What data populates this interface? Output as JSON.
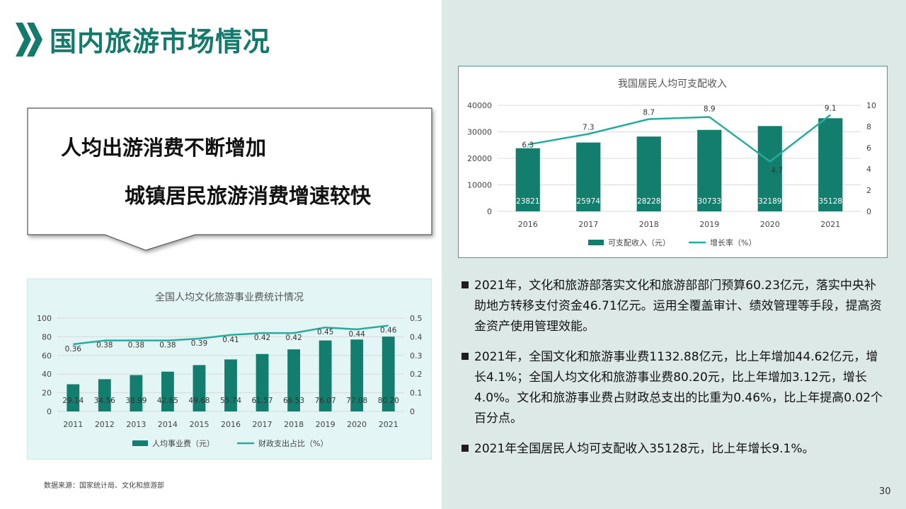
{
  "page": {
    "title": "国内旅游市场情况",
    "callout_line1": "人均出游消费不断增加",
    "callout_line2": "城镇居民旅游消费增速较快",
    "source": "数据来源：国家统计局、文化和旅游部",
    "page_number": "30",
    "accent_color": "#147a6b",
    "bar_color": "#137d6e",
    "line_color": "#27ab9c",
    "right_panel_color": "#dde9e6",
    "icon": "double-chevron-icon"
  },
  "bullets": [
    "2021年，文化和旅游部落实文化和旅游部部门预算60.23亿元，落实中央补助地方转移支付资金46.71亿元。运用全覆盖审计、绩效管理等手段，提高资金资产使用管理效能。",
    "2021年，全国文化和旅游事业费1132.88亿元，比上年增加44.62亿元，增长4.1%；全国人均文化和旅游事业费80.20元，比上年增加3.12元，增长4.0%。文化和旅游事业费占财政总支出的比重为0.46%，比上年提高0.02个百分点。",
    "2021年全国居民人均可支配收入35128元，比上年增长9.1%。"
  ],
  "chart_data": [
    {
      "type": "bar",
      "title": "全国人均文化旅游事业费统计情况",
      "categories": [
        "2011",
        "2012",
        "2013",
        "2014",
        "2015",
        "2016",
        "2017",
        "2018",
        "2019",
        "2020",
        "2021"
      ],
      "series": [
        {
          "name": "人均事业费（元）",
          "type": "bar",
          "axis": "left",
          "values": [
            29.14,
            34.56,
            38.99,
            42.65,
            49.68,
            55.74,
            61.57,
            66.53,
            76.07,
            77.08,
            80.2
          ]
        },
        {
          "name": "财政支出占比（%）",
          "type": "line",
          "axis": "right",
          "values": [
            0.36,
            0.38,
            0.38,
            0.38,
            0.39,
            0.41,
            0.42,
            0.42,
            0.45,
            0.44,
            0.46
          ]
        }
      ],
      "ylim": [
        0,
        100
      ],
      "yticks": [
        0,
        20,
        40,
        60,
        80,
        100
      ],
      "y2lim": [
        0,
        0.5
      ],
      "y2ticks": [
        0,
        0.1,
        0.2,
        0.3,
        0.4,
        0.5
      ],
      "legend": "bottom",
      "grid": true
    },
    {
      "type": "bar",
      "title": "我国居民人均可支配收入",
      "categories": [
        "2016",
        "2017",
        "2018",
        "2019",
        "2020",
        "2021"
      ],
      "series": [
        {
          "name": "可支配收入（元）",
          "type": "bar",
          "axis": "left",
          "values": [
            23821,
            25974,
            28228,
            30733,
            32189,
            35128
          ]
        },
        {
          "name": "增长率（%）",
          "type": "line",
          "axis": "right",
          "values": [
            6.3,
            7.3,
            8.7,
            8.9,
            4.7,
            9.1
          ]
        }
      ],
      "ylim": [
        0,
        40000
      ],
      "yticks": [
        0,
        10000,
        20000,
        30000,
        40000
      ],
      "y2lim": [
        0,
        10
      ],
      "y2ticks": [
        0,
        2,
        4,
        6,
        8,
        10
      ],
      "legend": "bottom",
      "grid": true
    }
  ]
}
